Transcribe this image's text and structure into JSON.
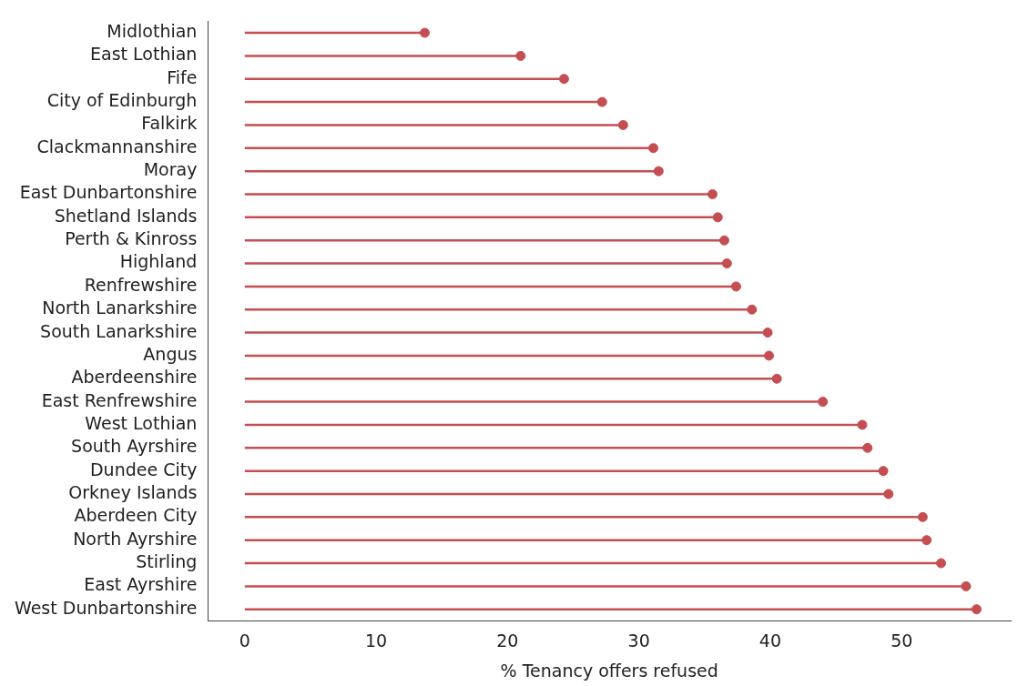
{
  "chart_data": {
    "type": "lollipop",
    "orientation": "horizontal",
    "xlabel": "% Tenancy offers refused",
    "categories": [
      "Midlothian",
      "East Lothian",
      "Fife",
      "City of Edinburgh",
      "Falkirk",
      "Clackmannanshire",
      "Moray",
      "East Dunbartonshire",
      "Shetland Islands",
      "Perth & Kinross",
      "Highland",
      "Renfrewshire",
      "North Lanarkshire",
      "South Lanarkshire",
      "Angus",
      "Aberdeenshire",
      "East Renfrewshire",
      "West Lothian",
      "South Ayrshire",
      "Dundee City",
      "Orkney Islands",
      "Aberdeen City",
      "North Ayrshire",
      "Stirling",
      "East Ayrshire",
      "West Dunbartonshire"
    ],
    "values": [
      13.7,
      21.0,
      24.3,
      27.2,
      28.8,
      31.1,
      31.5,
      35.6,
      36.0,
      36.5,
      36.7,
      37.4,
      38.6,
      39.8,
      39.9,
      40.5,
      44.0,
      47.0,
      47.4,
      48.6,
      49.0,
      51.6,
      51.9,
      53.0,
      54.9,
      55.7
    ],
    "color": "#c44e52",
    "marker": "circle",
    "xlim": [
      -2.8,
      58.3
    ],
    "xticks": [
      0,
      10,
      20,
      30,
      40,
      50
    ]
  }
}
